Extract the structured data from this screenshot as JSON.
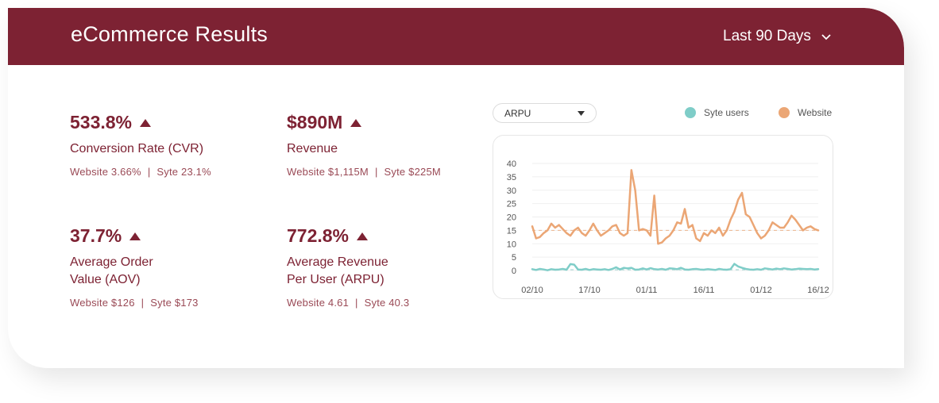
{
  "header": {
    "title": "eCommerce Results",
    "range_label": "Last 90 Days"
  },
  "metrics": [
    {
      "value": "533.8%",
      "label": "Conversion Rate (CVR)",
      "website": "Website  3.66%",
      "syte": "Syte  23.1%"
    },
    {
      "value": "$890M",
      "label": "Revenue",
      "website": "Website  $1,115M",
      "syte": "Syte  $225M"
    },
    {
      "value": "37.7%",
      "label_line1": "Average Order",
      "label_line2": "Value (AOV)",
      "website": "Website  $126",
      "syte": "Syte  $173"
    },
    {
      "value": "772.8%",
      "label_line1": "Average Revenue",
      "label_line2": "Per User (ARPU)",
      "website": "Website  4.61",
      "syte": "Syte  40.3"
    }
  ],
  "separator": "|",
  "metric_dropdown": {
    "label": "ARPU"
  },
  "legend": [
    {
      "name": "Syte users",
      "color": "#7fcdc8"
    },
    {
      "name": "Website",
      "color": "#eba675"
    }
  ],
  "colors": {
    "accent": "#7d2233",
    "website": "#eba675",
    "syte": "#7fcdc8"
  },
  "chart_data": {
    "type": "line",
    "ylim": [
      0,
      40
    ],
    "y_ticks": [
      0,
      5,
      10,
      15,
      20,
      25,
      30,
      35,
      40
    ],
    "x_tick_labels": [
      "02/10",
      "17/10",
      "01/11",
      "16/11",
      "01/12",
      "16/12"
    ],
    "x_tick_index": [
      0,
      15,
      30,
      45,
      60,
      75
    ],
    "series": [
      {
        "name": "Website",
        "color": "#eba675",
        "reference_line": 15,
        "values": [
          16.5,
          12,
          12.5,
          14,
          15,
          17.5,
          16,
          17,
          15.5,
          14,
          13,
          15,
          16,
          14,
          13,
          15,
          17.5,
          15,
          13,
          14,
          15,
          16.5,
          17,
          14,
          13,
          14,
          37.5,
          30,
          15,
          15.5,
          15,
          13,
          28,
          10,
          10.5,
          12,
          13,
          15,
          18,
          17.5,
          23,
          16,
          17,
          12,
          11,
          14,
          13,
          15,
          14,
          16,
          13,
          15,
          19,
          22,
          26.5,
          29,
          21,
          20,
          17,
          14,
          12,
          13,
          15,
          18,
          17,
          16,
          16,
          18,
          20.5,
          19,
          17,
          15,
          16,
          16.5,
          15.5,
          15
        ]
      },
      {
        "name": "Syte users",
        "color": "#7fcdc8",
        "reference_line": 0.3,
        "values": [
          0.5,
          0.2,
          0.6,
          0.4,
          0.1,
          0.5,
          0.3,
          0.4,
          0.6,
          0.3,
          2.4,
          2.2,
          0.4,
          0.3,
          0.6,
          0.2,
          0.5,
          0.4,
          0.3,
          0.5,
          0.2,
          0.6,
          1.2,
          0.4,
          1.0,
          0.8,
          1.0,
          0.3,
          0.4,
          0.8,
          0.4,
          0.9,
          0.5,
          0.4,
          0.6,
          0.3,
          0.8,
          0.7,
          0.5,
          1.0,
          0.4,
          0.3,
          0.5,
          0.6,
          0.4,
          0.3,
          0.5,
          0.4,
          0.2,
          0.6,
          0.4,
          0.3,
          0.5,
          2.5,
          1.5,
          1.0,
          0.6,
          0.4,
          0.3,
          0.5,
          0.3,
          0.8,
          0.6,
          0.4,
          0.7,
          0.5,
          0.8,
          0.6,
          0.4,
          0.5,
          0.7,
          0.6,
          0.5,
          0.6,
          0.4,
          0.5
        ]
      }
    ]
  }
}
